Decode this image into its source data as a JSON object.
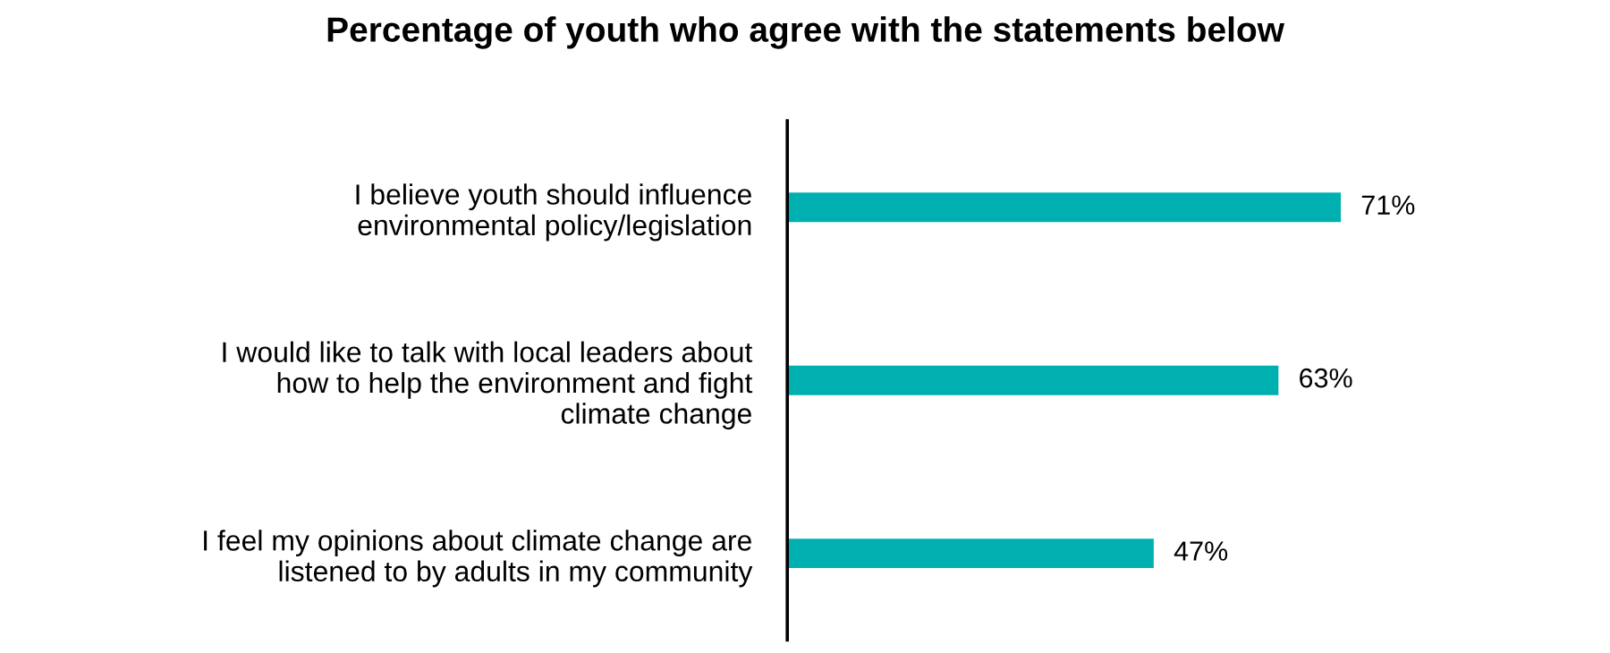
{
  "chart_data": {
    "type": "bar",
    "orientation": "horizontal",
    "title": "Percentage of youth who agree with the statements below",
    "categories": [
      "I believe youth should influence\nenvironmental policy/legislation",
      "I would like to talk with local leaders about\nhow to help the environment and fight\nclimate change",
      "I feel my opinions about climate change are\nlistened to by adults in my community"
    ],
    "values": [
      71,
      63,
      47
    ],
    "value_labels": [
      "71%",
      "63%",
      "47%"
    ],
    "color": "#00b0b0",
    "tick_labels": "y",
    "grid": false,
    "legend": false
  }
}
